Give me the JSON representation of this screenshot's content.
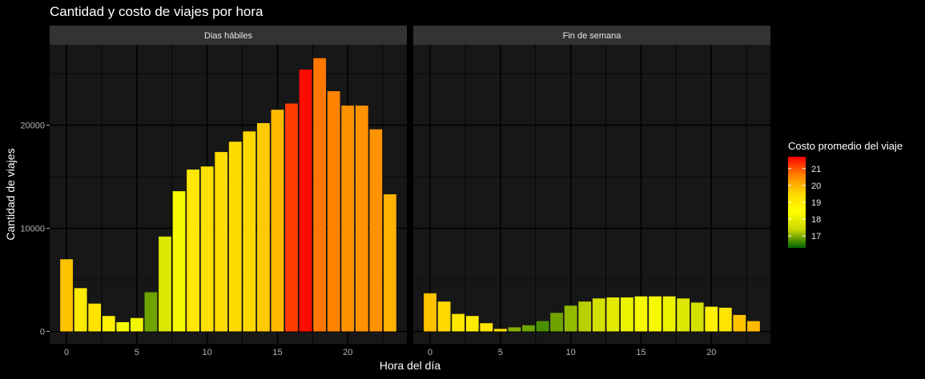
{
  "chart_data": {
    "type": "bar",
    "title": "Cantidad y costo de viajes por hora",
    "xlabel": "Hora del día",
    "ylabel": "Cantidad de viajes",
    "x": [
      0,
      1,
      2,
      3,
      4,
      5,
      6,
      7,
      8,
      9,
      10,
      11,
      12,
      13,
      14,
      15,
      16,
      17,
      18,
      19,
      20,
      21,
      22,
      23
    ],
    "xlim": [
      -1.2,
      24.2
    ],
    "ylim": [
      -1200,
      27800
    ],
    "x_ticks": [
      0,
      5,
      10,
      15,
      20
    ],
    "y_ticks": [
      0,
      10000,
      20000
    ],
    "grid": true,
    "legend_position": "right",
    "panels": [
      {
        "name": "Dias hábiles",
        "values": [
          7000,
          4200,
          2700,
          1500,
          900,
          1300,
          3800,
          9200,
          13600,
          15700,
          16000,
          17400,
          18400,
          19400,
          20200,
          21500,
          22100,
          25400,
          26500,
          23300,
          21900,
          21900,
          19600,
          13300
        ],
        "cost": [
          19.8,
          19.0,
          19.2,
          18.9,
          18.3,
          18.2,
          16.9,
          17.8,
          18.3,
          19.1,
          19.3,
          19.4,
          19.4,
          19.5,
          19.7,
          19.9,
          21.2,
          21.6,
          20.7,
          20.6,
          20.4,
          20.4,
          20.4,
          20.0
        ]
      },
      {
        "name": "Fin de semana",
        "values": [
          3700,
          2900,
          1700,
          1500,
          800,
          250,
          400,
          600,
          1000,
          1800,
          2500,
          2900,
          3200,
          3300,
          3300,
          3400,
          3400,
          3400,
          3200,
          2800,
          2400,
          2300,
          1600,
          1000
        ],
        "cost": [
          19.8,
          19.5,
          19.1,
          19.0,
          19.2,
          19.3,
          17.0,
          16.9,
          16.7,
          16.9,
          17.1,
          17.3,
          17.6,
          17.9,
          18.1,
          18.3,
          18.3,
          18.1,
          17.8,
          17.6,
          18.8,
          19.2,
          19.8,
          19.9
        ]
      }
    ],
    "color_scale": {
      "title": "Costo promedio del viaje",
      "breaks": [
        17,
        18,
        19,
        20,
        21
      ],
      "min": 16.3,
      "max": 21.7,
      "stops": [
        "#006400",
        "#c8d800",
        "#ffff00",
        "#ffd700",
        "#ff8000",
        "#ff0000"
      ]
    }
  }
}
